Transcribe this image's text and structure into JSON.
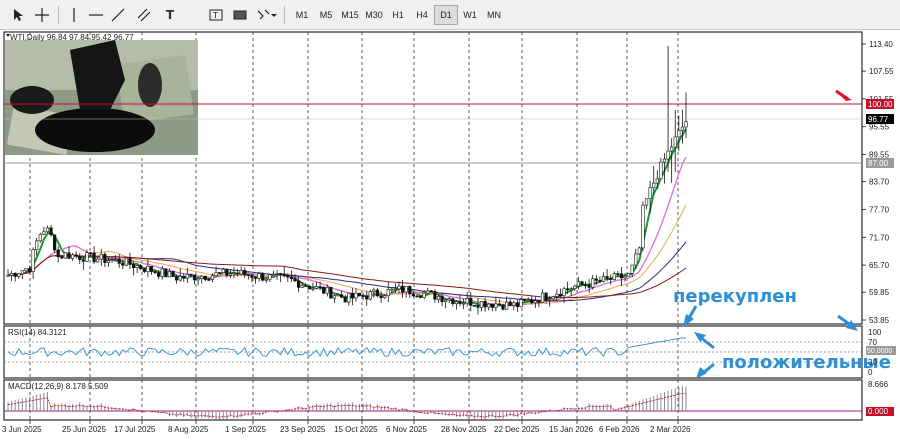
{
  "toolbar": {
    "tools": [
      "cursor-icon",
      "crosshair-icon",
      "vertical-line-icon",
      "horizontal-line-icon",
      "trendline-icon",
      "channel-icon",
      "text-icon",
      "label-icon",
      "shapes-icon",
      "more-tools-icon"
    ],
    "timeframes": [
      "M1",
      "M5",
      "M15",
      "M30",
      "H1",
      "H4",
      "D1",
      "W1",
      "MN"
    ],
    "active_timeframe": "D1"
  },
  "chart": {
    "title": "WTI,Daily",
    "ohlc": "96.84 97.84 95.42 96.77",
    "current_price_label": "96.77",
    "level_100_label": "100.00",
    "level_87_label": "87.00",
    "price_ticks": [
      "113.40",
      "107.55",
      "101.55",
      "95.55",
      "89.55",
      "83.70",
      "77.70",
      "71.70",
      "65.70",
      "59.85",
      "53.85"
    ],
    "date_labels": [
      "3 Jun 2025",
      "25 Jun 2025",
      "17 Jul 2025",
      "8 Aug 2025",
      "1 Sep 2025",
      "23 Sep 2025",
      "15 Oct 2025",
      "6 Nov 2025",
      "28 Nov 2025",
      "22 Dec 2025",
      "15 Jan 2026",
      "6 Feb 2026",
      "2 Mar 2026"
    ],
    "colors": {
      "up_candle": "#111111",
      "ma_green": "#1a9a2a",
      "ma_pink": "#e26ae0",
      "ma_navy": "#2b2d7a",
      "ma_brown": "#8b1a1a",
      "ma_orange": "#e8a94a",
      "level_red": "#c0102a",
      "annotation": "#2d8fd5"
    }
  },
  "rsi": {
    "label": "RSI(14) 84.3121",
    "ticks": [
      "100",
      "70",
      "30",
      "0"
    ],
    "level_label": "50.0000"
  },
  "macd": {
    "label": "MACD(12,26,9) 8.178 5.509",
    "ticks": [
      "8.666",
      "0.000"
    ]
  },
  "annotations": {
    "overbought": "перекуплен",
    "positive": "положительные"
  },
  "chart_data": {
    "type": "candlestick",
    "title": "WTI,Daily",
    "ylim": [
      53.85,
      113.4
    ],
    "x": [
      "3 Jun 2025",
      "25 Jun 2025",
      "17 Jul 2025",
      "8 Aug 2025",
      "1 Sep 2025",
      "23 Sep 2025",
      "15 Oct 2025",
      "6 Nov 2025",
      "28 Nov 2025",
      "22 Dec 2025",
      "15 Jan 2026",
      "6 Feb 2026",
      "2 Mar 2026"
    ],
    "close_approx": [
      63.5,
      68.0,
      66.5,
      63.0,
      64.0,
      62.5,
      58.5,
      60.5,
      58.0,
      57.0,
      61.0,
      63.5,
      96.77
    ],
    "last_ohlc": {
      "open": 96.84,
      "high": 97.84,
      "low": 95.42,
      "close": 96.77
    },
    "horizontal_levels": [
      100.0,
      87.0
    ],
    "rsi": {
      "value": 84.3121,
      "levels": [
        70,
        50,
        30
      ]
    },
    "macd": {
      "main": 8.178,
      "signal": 5.509
    }
  }
}
